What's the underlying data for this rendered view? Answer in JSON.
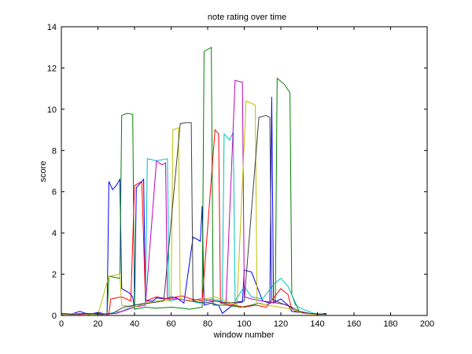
{
  "chart_data": {
    "type": "line",
    "title": "note rating over time",
    "xlabel": "window number",
    "ylabel": "score",
    "xlim": [
      0,
      200
    ],
    "ylim": [
      0,
      14
    ],
    "xticks": [
      0,
      20,
      40,
      60,
      80,
      100,
      120,
      140,
      160,
      180,
      200
    ],
    "yticks": [
      0,
      2,
      4,
      6,
      8,
      10,
      12,
      14
    ],
    "grid": false,
    "legend": "none",
    "series": [
      {
        "color": "#0000ff",
        "points": [
          [
            0,
            0.1
          ],
          [
            5,
            0.05
          ],
          [
            10,
            0.2
          ],
          [
            15,
            0.05
          ],
          [
            20,
            0.15
          ],
          [
            25,
            0.05
          ],
          [
            26,
            6.5
          ],
          [
            28,
            6.1
          ],
          [
            30,
            6.3
          ],
          [
            32,
            6.6
          ],
          [
            33,
            1.3
          ],
          [
            37,
            1.1
          ],
          [
            39,
            0.9
          ],
          [
            40,
            0.3
          ],
          [
            41,
            6.2
          ],
          [
            43,
            6.4
          ],
          [
            45,
            6.6
          ],
          [
            46,
            0.7
          ],
          [
            50,
            0.7
          ],
          [
            52,
            0.85
          ],
          [
            57,
            0.8
          ],
          [
            60,
            0.9
          ],
          [
            63,
            0.85
          ],
          [
            67,
            0.6
          ],
          [
            72,
            3.8
          ],
          [
            76,
            3.6
          ],
          [
            77,
            5.3
          ],
          [
            78,
            0.5
          ],
          [
            82,
            0.6
          ],
          [
            86,
            0.5
          ],
          [
            88,
            0.1
          ],
          [
            95,
            0.6
          ],
          [
            99,
            0.65
          ],
          [
            100,
            2.2
          ],
          [
            104,
            2.1
          ],
          [
            110,
            0.7
          ],
          [
            114,
            0.6
          ],
          [
            115,
            10.6
          ],
          [
            116,
            0.6
          ],
          [
            120,
            0.8
          ],
          [
            124,
            0.5
          ],
          [
            126,
            0.2
          ],
          [
            130,
            0.15
          ],
          [
            135,
            0.1
          ],
          [
            140,
            0.05
          ],
          [
            145,
            0.1
          ]
        ]
      },
      {
        "color": "#008000",
        "points": [
          [
            0,
            0.05
          ],
          [
            8,
            0.1
          ],
          [
            15,
            0.05
          ],
          [
            22,
            0.1
          ],
          [
            25,
            0.05
          ],
          [
            26,
            1.9
          ],
          [
            32,
            1.8
          ],
          [
            33,
            9.7
          ],
          [
            36,
            9.8
          ],
          [
            39,
            9.75
          ],
          [
            40,
            0.3
          ],
          [
            46,
            0.4
          ],
          [
            52,
            0.35
          ],
          [
            60,
            0.4
          ],
          [
            66,
            0.35
          ],
          [
            70,
            0.3
          ],
          [
            77,
            0.4
          ],
          [
            78,
            12.8
          ],
          [
            82,
            13.0
          ],
          [
            83,
            0.5
          ],
          [
            90,
            0.5
          ],
          [
            98,
            0.4
          ],
          [
            104,
            0.5
          ],
          [
            108,
            0.6
          ],
          [
            112,
            0.5
          ],
          [
            117,
            0.7
          ],
          [
            118,
            11.5
          ],
          [
            122,
            11.2
          ],
          [
            125,
            10.8
          ],
          [
            126,
            1.0
          ],
          [
            128,
            0.6
          ],
          [
            130,
            0.2
          ],
          [
            135,
            0.1
          ],
          [
            142,
            0.05
          ]
        ]
      },
      {
        "color": "#ff0000",
        "points": [
          [
            0,
            0.1
          ],
          [
            10,
            0.05
          ],
          [
            20,
            0.1
          ],
          [
            26,
            0.05
          ],
          [
            27,
            0.8
          ],
          [
            33,
            0.9
          ],
          [
            38,
            0.7
          ],
          [
            40,
            6.3
          ],
          [
            44,
            6.5
          ],
          [
            46,
            0.7
          ],
          [
            52,
            0.9
          ],
          [
            58,
            0.8
          ],
          [
            63,
            0.9
          ],
          [
            66,
            0.95
          ],
          [
            71,
            0.8
          ],
          [
            77,
            0.7
          ],
          [
            84,
            9.0
          ],
          [
            86,
            8.8
          ],
          [
            87,
            0.6
          ],
          [
            94,
            0.5
          ],
          [
            100,
            0.4
          ],
          [
            106,
            0.5
          ],
          [
            112,
            0.4
          ],
          [
            120,
            1.3
          ],
          [
            124,
            1.0
          ],
          [
            126,
            0.3
          ],
          [
            132,
            0.1
          ],
          [
            140,
            0.05
          ]
        ]
      },
      {
        "color": "#00bfbf",
        "points": [
          [
            0,
            0.05
          ],
          [
            12,
            0.1
          ],
          [
            20,
            0.05
          ],
          [
            26,
            0.1
          ],
          [
            33,
            0.2
          ],
          [
            40,
            0.5
          ],
          [
            46,
            0.6
          ],
          [
            47,
            7.6
          ],
          [
            52,
            7.5
          ],
          [
            58,
            7.6
          ],
          [
            59,
            0.7
          ],
          [
            64,
            0.8
          ],
          [
            70,
            0.7
          ],
          [
            76,
            0.6
          ],
          [
            82,
            0.8
          ],
          [
            88,
            0.7
          ],
          [
            89,
            8.8
          ],
          [
            92,
            8.5
          ],
          [
            94,
            8.9
          ],
          [
            95,
            0.7
          ],
          [
            100,
            1.4
          ],
          [
            104,
            0.9
          ],
          [
            110,
            0.8
          ],
          [
            116,
            1.5
          ],
          [
            120,
            1.8
          ],
          [
            124,
            1.4
          ],
          [
            126,
            1.0
          ],
          [
            128,
            0.5
          ],
          [
            132,
            0.3
          ],
          [
            138,
            0.1
          ],
          [
            145,
            0.05
          ]
        ]
      },
      {
        "color": "#bf00bf",
        "points": [
          [
            0,
            0.05
          ],
          [
            14,
            0.1
          ],
          [
            22,
            0.05
          ],
          [
            30,
            0.1
          ],
          [
            40,
            0.4
          ],
          [
            46,
            0.5
          ],
          [
            52,
            7.5
          ],
          [
            55,
            7.3
          ],
          [
            57,
            7.4
          ],
          [
            58,
            0.8
          ],
          [
            64,
            0.8
          ],
          [
            70,
            0.7
          ],
          [
            76,
            0.8
          ],
          [
            84,
            0.7
          ],
          [
            90,
            0.6
          ],
          [
            95,
            11.4
          ],
          [
            99,
            11.3
          ],
          [
            100,
            0.9
          ],
          [
            104,
            0.8
          ],
          [
            110,
            0.7
          ],
          [
            118,
            0.6
          ],
          [
            124,
            0.5
          ],
          [
            128,
            0.2
          ],
          [
            135,
            0.1
          ],
          [
            140,
            0.05
          ]
        ]
      },
      {
        "color": "#bfbf00",
        "points": [
          [
            0,
            0.05
          ],
          [
            10,
            0.1
          ],
          [
            20,
            0.05
          ],
          [
            26,
            1.9
          ],
          [
            32,
            2.0
          ],
          [
            33,
            0.5
          ],
          [
            40,
            0.4
          ],
          [
            46,
            0.6
          ],
          [
            52,
            0.7
          ],
          [
            60,
            0.75
          ],
          [
            61,
            9.0
          ],
          [
            64,
            9.1
          ],
          [
            65,
            0.8
          ],
          [
            72,
            0.7
          ],
          [
            78,
            0.8
          ],
          [
            84,
            0.9
          ],
          [
            90,
            0.7
          ],
          [
            96,
            0.5
          ],
          [
            101,
            10.4
          ],
          [
            106,
            10.2
          ],
          [
            107,
            0.6
          ],
          [
            112,
            0.5
          ],
          [
            120,
            0.4
          ],
          [
            126,
            0.3
          ],
          [
            132,
            0.1
          ],
          [
            140,
            0.05
          ]
        ]
      },
      {
        "color": "#404040",
        "points": [
          [
            0,
            0.1
          ],
          [
            6,
            0.05
          ],
          [
            14,
            0.1
          ],
          [
            22,
            0.05
          ],
          [
            28,
            0.1
          ],
          [
            34,
            0.4
          ],
          [
            40,
            0.5
          ],
          [
            48,
            0.6
          ],
          [
            56,
            0.7
          ],
          [
            65,
            9.3
          ],
          [
            68,
            9.35
          ],
          [
            71,
            9.35
          ],
          [
            72,
            0.7
          ],
          [
            78,
            0.6
          ],
          [
            84,
            0.7
          ],
          [
            92,
            0.6
          ],
          [
            100,
            0.7
          ],
          [
            108,
            9.6
          ],
          [
            112,
            9.7
          ],
          [
            114,
            9.6
          ],
          [
            115,
            0.8
          ],
          [
            120,
            0.6
          ],
          [
            126,
            0.4
          ],
          [
            130,
            0.2
          ],
          [
            136,
            0.1
          ],
          [
            145,
            0.05
          ]
        ]
      }
    ]
  }
}
